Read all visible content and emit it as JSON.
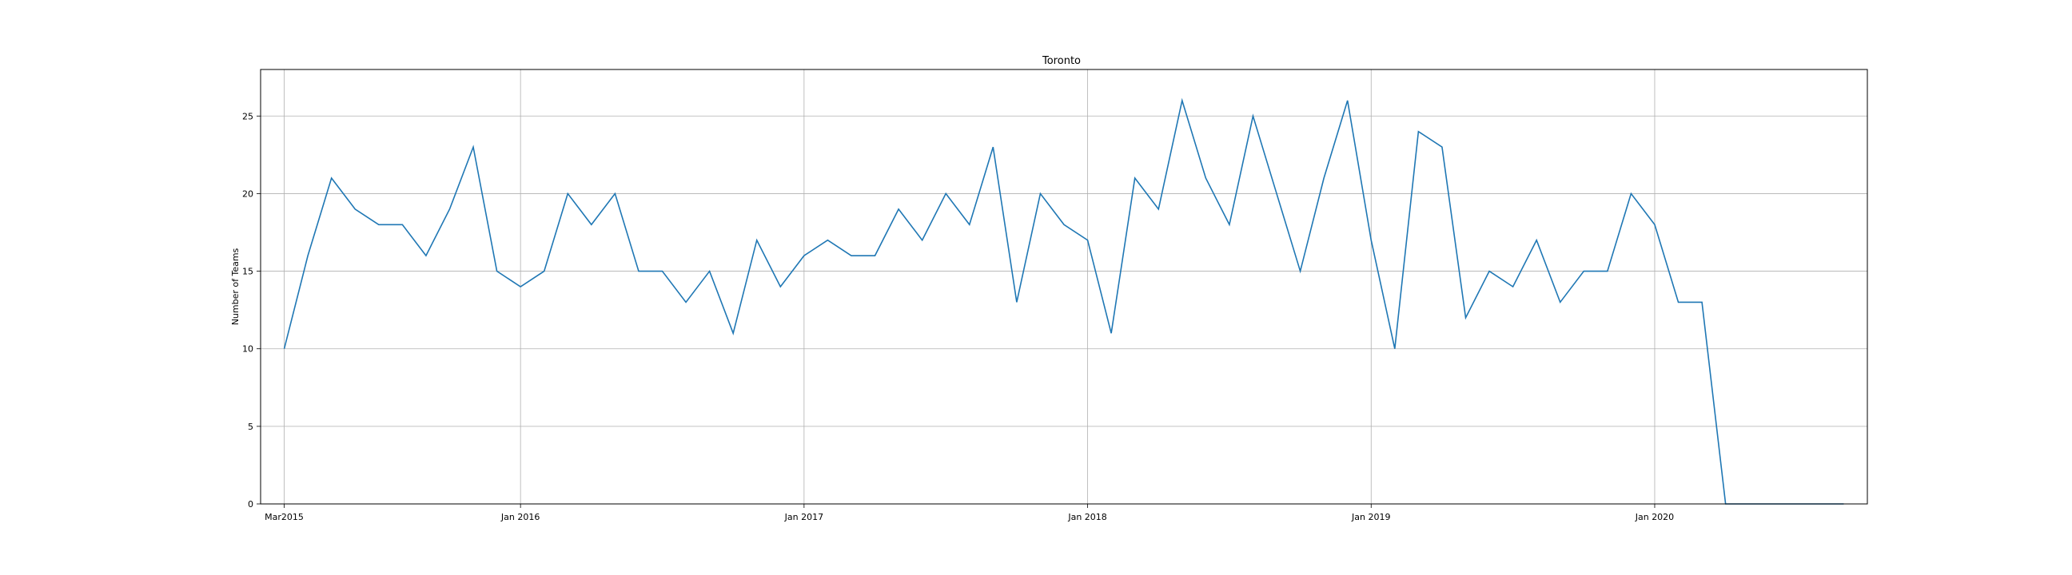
{
  "chart_data": {
    "type": "line",
    "title": "Toronto",
    "xlabel": "",
    "ylabel": "Number of Teams",
    "grid": true,
    "legend": false,
    "line_color": "#1f77b4",
    "x_start": "2015-03",
    "x_step": "month",
    "x_ticks": [
      {
        "label": "Mar2015",
        "date": "2015-03"
      },
      {
        "label": "Jan 2016",
        "date": "2016-01"
      },
      {
        "label": "Jan 2017",
        "date": "2017-01"
      },
      {
        "label": "Jan 2018",
        "date": "2018-01"
      },
      {
        "label": "Jan 2019",
        "date": "2019-01"
      },
      {
        "label": "Jan 2020",
        "date": "2020-01"
      }
    ],
    "y_ticks": [
      0,
      5,
      10,
      15,
      20,
      25
    ],
    "ylim": [
      0,
      28
    ],
    "xlim": [
      "2015-02",
      "2020-10"
    ],
    "series": [
      {
        "values": [
          10,
          16,
          21,
          19,
          18,
          18,
          16,
          19,
          23,
          15,
          14,
          15,
          20,
          18,
          20,
          15,
          15,
          13,
          15,
          11,
          17,
          14,
          16,
          17,
          16,
          16,
          19,
          17,
          20,
          18,
          23,
          13,
          20,
          18,
          17,
          11,
          21,
          19,
          26,
          21,
          18,
          25,
          20,
          15,
          21,
          26,
          17,
          10,
          24,
          23,
          12,
          15,
          14,
          17,
          13,
          15,
          15,
          20,
          18,
          13,
          13,
          0,
          0,
          0,
          0,
          0,
          0
        ]
      }
    ]
  }
}
